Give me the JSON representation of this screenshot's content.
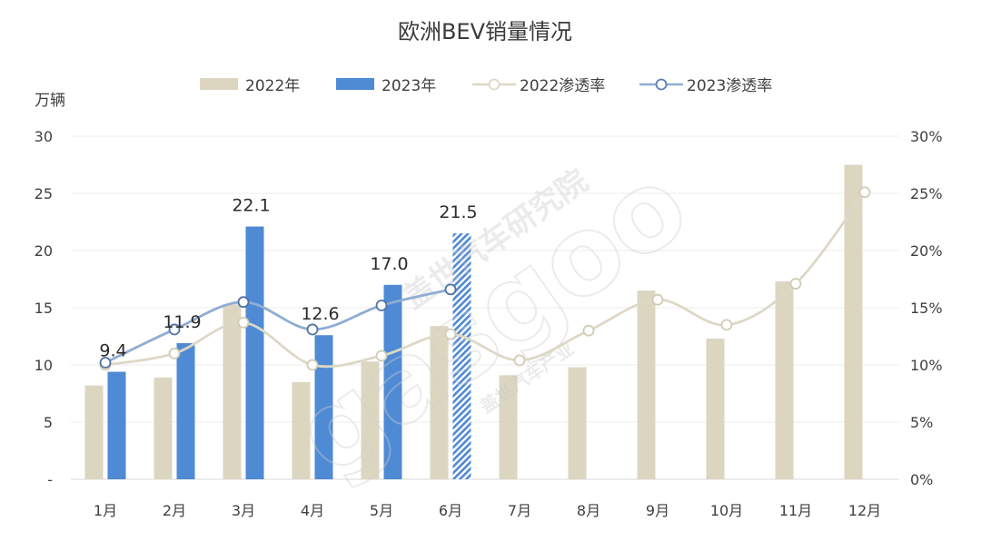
{
  "colors": {
    "bar_2022": "#dcd6c1",
    "bar_2023": "#4f8ad4",
    "line_2022": "#ddd8c6",
    "line_2023": "#8fadd3",
    "grid": "#ececec",
    "text": "#404040"
  },
  "watermark": {
    "text": "盖世汽车研究院",
    "logo": "gasgoo",
    "sub": "盖世汽车产业"
  },
  "chart_data": {
    "type": "bar",
    "title": "欧洲BEV销量情况",
    "ylabel": "万辆",
    "categories": [
      "1月",
      "2月",
      "3月",
      "4月",
      "5月",
      "6月",
      "7月",
      "8月",
      "9月",
      "10月",
      "11月",
      "12月"
    ],
    "ylim": [
      0,
      30
    ],
    "yticks": [
      "-",
      "5",
      "10",
      "15",
      "20",
      "25",
      "30"
    ],
    "y2lim": [
      0,
      0.3
    ],
    "y2ticks": [
      "0%",
      "5%",
      "10%",
      "15%",
      "20%",
      "25%",
      "30%"
    ],
    "legend": [
      "2022年",
      "2023年",
      "2022渗透率",
      "2023渗透率"
    ],
    "grid": true,
    "series": [
      {
        "name": "2022年",
        "kind": "bar",
        "values": [
          8.2,
          8.9,
          15.3,
          8.5,
          10.3,
          13.4,
          9.1,
          9.8,
          16.5,
          12.3,
          17.3,
          27.5
        ]
      },
      {
        "name": "2023年",
        "kind": "bar",
        "values": [
          9.4,
          11.9,
          22.1,
          12.6,
          17.0,
          21.5,
          null,
          null,
          null,
          null,
          null,
          null
        ],
        "labels": [
          "9.4",
          "11.9",
          "22.1",
          "12.6",
          "17.0",
          "21.5"
        ],
        "estimated_index": 5
      },
      {
        "name": "2022渗透率",
        "kind": "line",
        "axis": "right",
        "values": [
          0.1,
          0.11,
          0.137,
          0.1,
          0.108,
          0.127,
          0.104,
          0.13,
          0.157,
          0.135,
          0.171,
          0.251
        ]
      },
      {
        "name": "2023渗透率",
        "kind": "line",
        "axis": "right",
        "values": [
          0.102,
          0.131,
          0.155,
          0.131,
          0.152,
          0.166,
          null,
          null,
          null,
          null,
          null,
          null
        ]
      }
    ]
  }
}
